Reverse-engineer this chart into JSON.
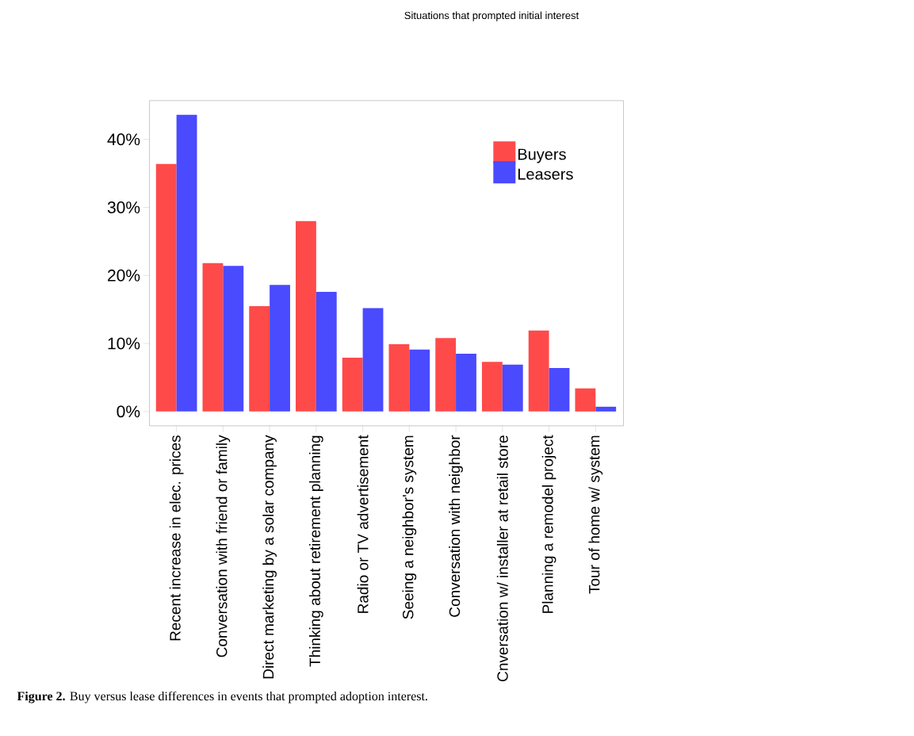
{
  "chart_data": {
    "type": "bar",
    "title": "Situations that prompted initial interest",
    "categories": [
      "Recent increase in elec. prices",
      "Conversation with friend or family",
      "Direct marketing by a solar company",
      "Thinking about retirement planning",
      "Radio or TV advertisement",
      "Seeing a neighbor's system",
      "Conversation with neighbor",
      "Cnversation w/ installer at retail store",
      "Planning a remodel project",
      "Tour of home w/ system"
    ],
    "series": [
      {
        "name": "Buyers",
        "color": "#ff4a4a",
        "values": [
          36.4,
          21.8,
          15.5,
          28.0,
          7.9,
          9.9,
          10.8,
          7.3,
          11.9,
          3.4
        ]
      },
      {
        "name": "Leasers",
        "color": "#4a4aff",
        "values": [
          43.6,
          21.4,
          18.6,
          17.6,
          15.2,
          9.1,
          8.5,
          6.9,
          6.4,
          0.7
        ]
      }
    ],
    "ylim": [
      -2.1,
      45.7
    ],
    "yticks": [
      {
        "value": 0,
        "label": "0%"
      },
      {
        "value": 10,
        "label": "10%"
      },
      {
        "value": 20,
        "label": "20%"
      },
      {
        "value": 30,
        "label": "30%"
      },
      {
        "value": 40,
        "label": "40%"
      }
    ],
    "legend": "top right",
    "annotations": [
      "**Figure 2.** Buy versus lease differences in events that prompted adoption interest."
    ]
  }
}
